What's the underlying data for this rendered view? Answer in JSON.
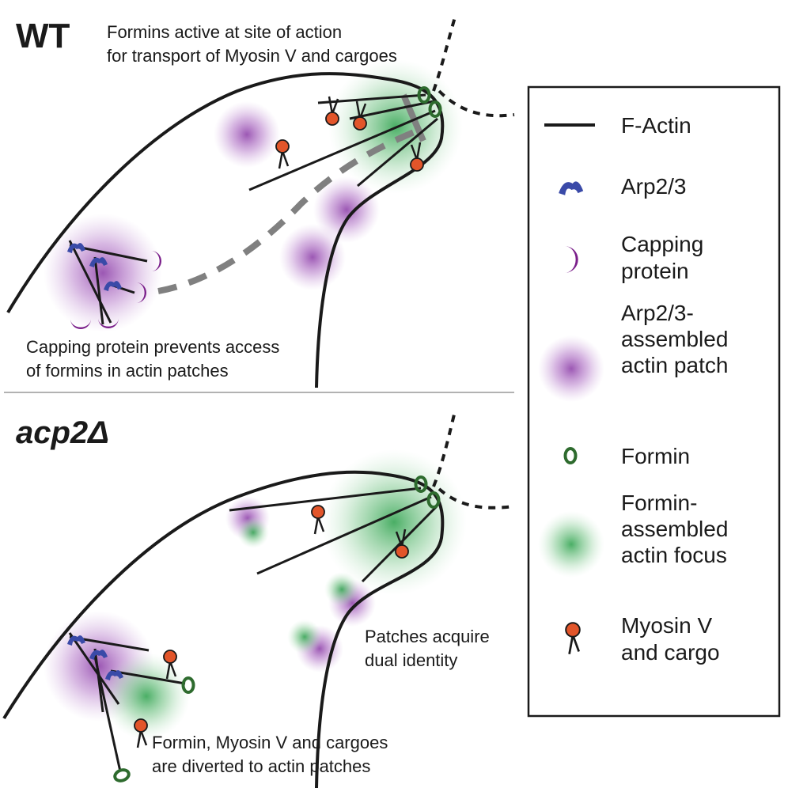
{
  "colors": {
    "outline": "#1a1a1a",
    "arp23": "#3a4aa8",
    "capping": "#7a1e8a",
    "patch": "#8a3aa6",
    "formin": "#2e6b2e",
    "focus": "#2aa04a",
    "myosin": "#e2552a",
    "polarity_line": "#808080"
  },
  "wt": {
    "label": "WT",
    "top_note": [
      "Formins active at site of action",
      "for transport of Myosin V and cargoes"
    ],
    "bottom_note": [
      "Capping protein prevents access",
      "of formins in actin patches"
    ]
  },
  "mutant": {
    "label": "acp2Δ",
    "right_note": [
      "Patches acquire",
      "dual identity"
    ],
    "bottom_note": [
      "Formin, Myosin V and cargoes",
      "are diverted to actin patches"
    ]
  },
  "legend": {
    "f_actin": [
      "F-Actin"
    ],
    "arp23": [
      "Arp2/3"
    ],
    "capping": [
      "Capping",
      "protein"
    ],
    "patch": [
      "Arp2/3-",
      "assembled",
      "actin patch"
    ],
    "formin": [
      "Formin"
    ],
    "focus": [
      "Formin-",
      "assembled",
      "actin focus"
    ],
    "myosin": [
      "Myosin V",
      "and cargo"
    ]
  }
}
